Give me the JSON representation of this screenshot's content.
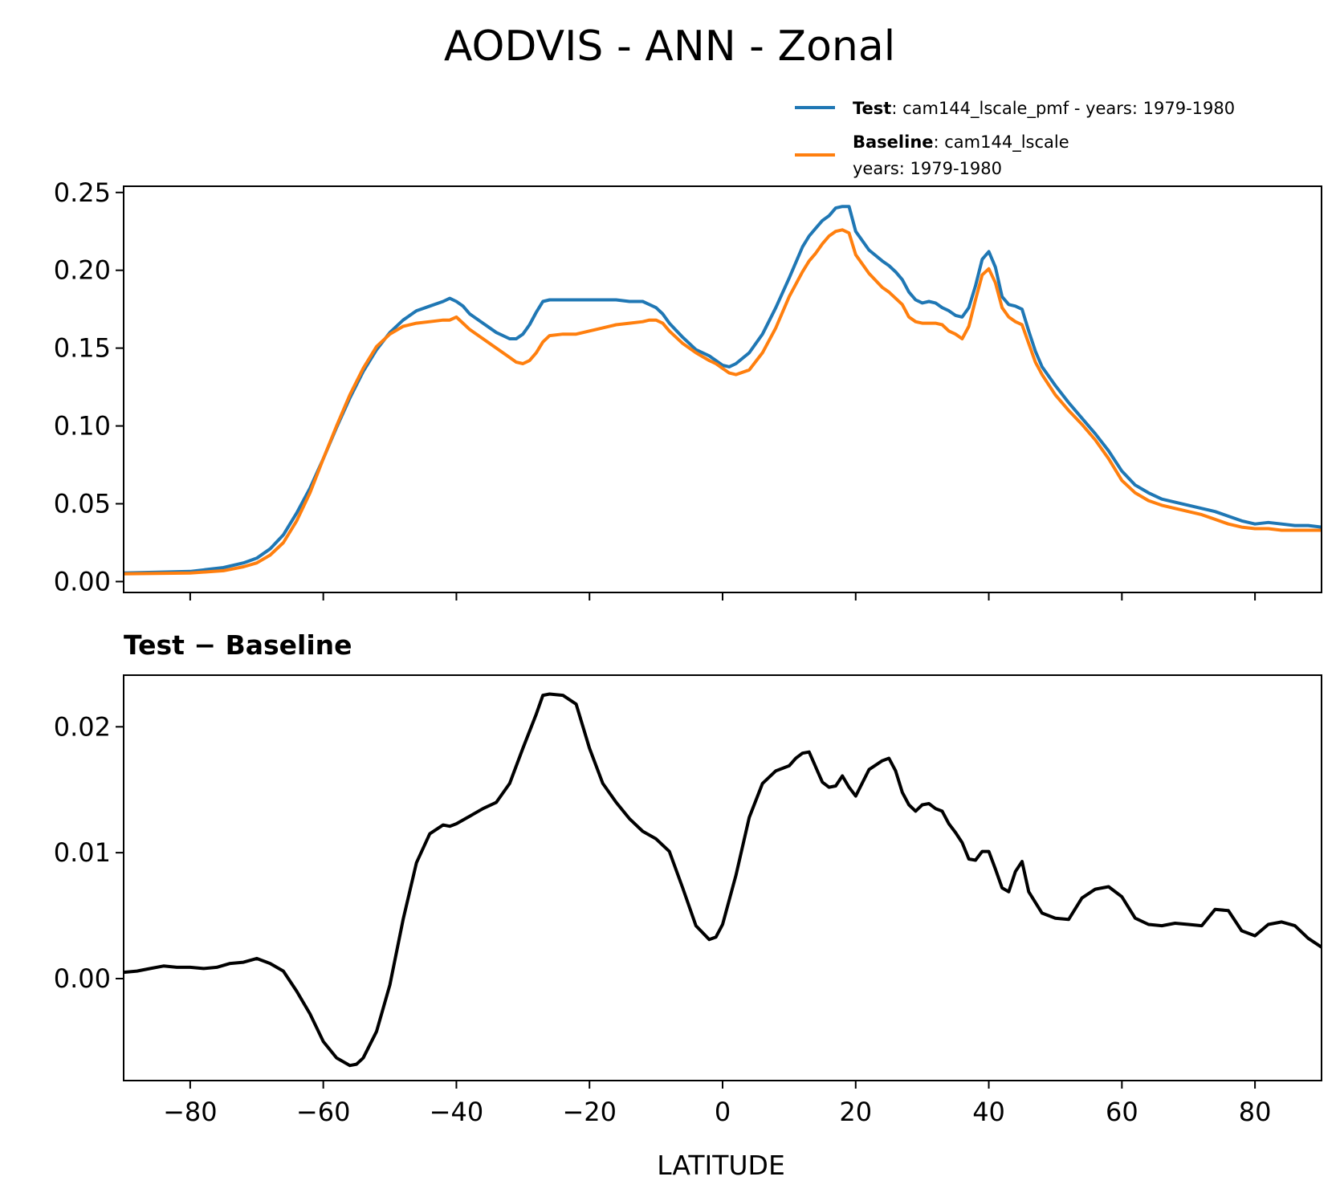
{
  "title": "AODVIS - ANN - Zonal",
  "legend": {
    "test_label": "Test",
    "test_text": ": cam144_lscale_pmf - years: 1979-1980",
    "baseline_label": "Baseline",
    "baseline_text_1": ": cam144_lscale",
    "baseline_text_2": "years: 1979-1980"
  },
  "diff_title": {
    "left": "Test",
    "op": " − ",
    "right": "Baseline"
  },
  "xlabel": "LATITUDE",
  "colors": {
    "test": "#1f77b4",
    "baseline": "#ff7f0e",
    "diff": "#000000"
  },
  "chart_data": [
    {
      "type": "line",
      "title": "",
      "xlabel": "",
      "ylabel": "",
      "xlim": [
        -90,
        90
      ],
      "ylim": [
        -0.007,
        0.254
      ],
      "xticks": [
        -80,
        -60,
        -40,
        -20,
        0,
        20,
        40,
        60,
        80
      ],
      "yticks": [
        0.0,
        0.05,
        0.1,
        0.15,
        0.2,
        0.25
      ],
      "ytick_labels": [
        "0.00",
        "0.05",
        "0.10",
        "0.15",
        "0.20",
        "0.25"
      ],
      "x": [
        -90,
        -80,
        -75,
        -72,
        -70,
        -68,
        -66,
        -64,
        -62,
        -60,
        -58,
        -56,
        -54,
        -52,
        -50,
        -48,
        -46,
        -44,
        -42,
        -41,
        -40,
        -39,
        -38,
        -36,
        -34,
        -32,
        -31,
        -30,
        -29,
        -28,
        -27,
        -26,
        -24,
        -22,
        -20,
        -18,
        -16,
        -14,
        -12,
        -11,
        -10,
        -9,
        -8,
        -6,
        -4,
        -2,
        -1,
        0,
        1,
        2,
        4,
        6,
        8,
        10,
        12,
        13,
        14,
        15,
        16,
        17,
        18,
        19,
        20,
        22,
        24,
        25,
        26,
        27,
        28,
        29,
        30,
        31,
        32,
        33,
        34,
        35,
        36,
        37,
        38,
        39,
        40,
        41,
        42,
        43,
        44,
        45,
        46,
        47,
        48,
        50,
        52,
        54,
        56,
        58,
        60,
        62,
        64,
        66,
        68,
        70,
        72,
        74,
        76,
        78,
        80,
        82,
        84,
        86,
        88,
        90
      ],
      "series": [
        {
          "name": "Test",
          "values": [
            0.0055,
            0.0065,
            0.009,
            0.012,
            0.015,
            0.021,
            0.03,
            0.044,
            0.06,
            0.079,
            0.099,
            0.118,
            0.135,
            0.149,
            0.16,
            0.168,
            0.174,
            0.177,
            0.18,
            0.182,
            0.18,
            0.177,
            0.172,
            0.166,
            0.16,
            0.156,
            0.156,
            0.159,
            0.165,
            0.173,
            0.18,
            0.181,
            0.181,
            0.181,
            0.181,
            0.181,
            0.181,
            0.18,
            0.18,
            0.178,
            0.176,
            0.172,
            0.166,
            0.157,
            0.149,
            0.145,
            0.142,
            0.139,
            0.138,
            0.14,
            0.147,
            0.159,
            0.176,
            0.195,
            0.215,
            0.222,
            0.227,
            0.232,
            0.235,
            0.24,
            0.241,
            0.241,
            0.225,
            0.213,
            0.206,
            0.203,
            0.199,
            0.194,
            0.186,
            0.181,
            0.179,
            0.18,
            0.179,
            0.176,
            0.174,
            0.171,
            0.17,
            0.176,
            0.19,
            0.207,
            0.212,
            0.202,
            0.183,
            0.178,
            0.177,
            0.175,
            0.161,
            0.148,
            0.138,
            0.126,
            0.115,
            0.105,
            0.095,
            0.084,
            0.071,
            0.062,
            0.057,
            0.053,
            0.051,
            0.049,
            0.047,
            0.045,
            0.042,
            0.039,
            0.037,
            0.038,
            0.037,
            0.036,
            0.036,
            0.035
          ]
        },
        {
          "name": "Baseline",
          "values": [
            0.005,
            0.0055,
            0.007,
            0.0095,
            0.012,
            0.017,
            0.025,
            0.039,
            0.057,
            0.079,
            0.1,
            0.12,
            0.137,
            0.151,
            0.159,
            0.164,
            0.166,
            0.167,
            0.168,
            0.168,
            0.17,
            0.166,
            0.162,
            0.156,
            0.15,
            0.144,
            0.141,
            0.14,
            0.142,
            0.147,
            0.154,
            0.158,
            0.159,
            0.159,
            0.161,
            0.163,
            0.165,
            0.166,
            0.167,
            0.168,
            0.168,
            0.166,
            0.161,
            0.153,
            0.147,
            0.142,
            0.14,
            0.137,
            0.134,
            0.133,
            0.136,
            0.147,
            0.163,
            0.183,
            0.199,
            0.206,
            0.211,
            0.217,
            0.222,
            0.225,
            0.226,
            0.224,
            0.21,
            0.198,
            0.189,
            0.186,
            0.182,
            0.178,
            0.17,
            0.167,
            0.166,
            0.166,
            0.166,
            0.165,
            0.161,
            0.159,
            0.156,
            0.164,
            0.181,
            0.197,
            0.201,
            0.192,
            0.176,
            0.17,
            0.167,
            0.165,
            0.153,
            0.141,
            0.133,
            0.12,
            0.11,
            0.101,
            0.091,
            0.079,
            0.065,
            0.057,
            0.052,
            0.049,
            0.047,
            0.045,
            0.043,
            0.04,
            0.037,
            0.035,
            0.034,
            0.034,
            0.033,
            0.033,
            0.033,
            0.033
          ]
        }
      ]
    },
    {
      "type": "line",
      "title": "Test − Baseline",
      "xlabel": "LATITUDE",
      "ylabel": "",
      "xlim": [
        -90,
        90
      ],
      "ylim": [
        -0.0081,
        0.0241
      ],
      "xticks": [
        -80,
        -60,
        -40,
        -20,
        0,
        20,
        40,
        60,
        80
      ],
      "xtick_labels": [
        "−80",
        "−60",
        "−40",
        "−20",
        "0",
        "20",
        "40",
        "60",
        "80"
      ],
      "yticks": [
        0.0,
        0.01,
        0.02
      ],
      "ytick_labels": [
        "0.00",
        "0.01",
        "0.02"
      ],
      "x": [
        -90,
        -88,
        -86,
        -84,
        -82,
        -80,
        -78,
        -76,
        -74,
        -72,
        -70,
        -68,
        -66,
        -64,
        -62,
        -60,
        -58,
        -56,
        -55,
        -54,
        -52,
        -50,
        -48,
        -46,
        -44,
        -42,
        -41,
        -40,
        -38,
        -36,
        -34,
        -32,
        -30,
        -28,
        -27,
        -26,
        -24,
        -22,
        -20,
        -18,
        -16,
        -14,
        -12,
        -10,
        -8,
        -6,
        -4,
        -2,
        -1,
        0,
        2,
        4,
        6,
        8,
        10,
        11,
        12,
        13,
        14,
        15,
        16,
        17,
        18,
        19,
        20,
        22,
        24,
        25,
        26,
        27,
        28,
        29,
        30,
        31,
        32,
        33,
        34,
        35,
        36,
        37,
        38,
        39,
        40,
        41,
        42,
        43,
        44,
        45,
        46,
        48,
        50,
        52,
        54,
        56,
        58,
        60,
        62,
        64,
        66,
        68,
        70,
        72,
        74,
        76,
        78,
        80,
        82,
        84,
        86,
        88,
        90
      ],
      "series": [
        {
          "name": "",
          "values": [
            0.0005,
            0.0006,
            0.0008,
            0.001,
            0.0009,
            0.0009,
            0.0008,
            0.0009,
            0.0012,
            0.0013,
            0.0016,
            0.0012,
            0.0006,
            -0.001,
            -0.0028,
            -0.005,
            -0.0063,
            -0.0069,
            -0.0068,
            -0.0063,
            -0.0042,
            -0.0005,
            0.0047,
            0.0092,
            0.0115,
            0.0122,
            0.0121,
            0.0123,
            0.0129,
            0.0135,
            0.014,
            0.0155,
            0.0183,
            0.021,
            0.0225,
            0.0226,
            0.0225,
            0.0218,
            0.0183,
            0.0155,
            0.014,
            0.0127,
            0.0117,
            0.0111,
            0.0101,
            0.0072,
            0.0042,
            0.0031,
            0.0033,
            0.0043,
            0.0082,
            0.0128,
            0.0155,
            0.0165,
            0.0169,
            0.0175,
            0.0179,
            0.018,
            0.0168,
            0.0156,
            0.0152,
            0.0153,
            0.0161,
            0.0152,
            0.0145,
            0.0166,
            0.0173,
            0.0175,
            0.0165,
            0.0148,
            0.0138,
            0.0133,
            0.0138,
            0.0139,
            0.0135,
            0.0133,
            0.0123,
            0.0116,
            0.0108,
            0.0095,
            0.0094,
            0.0101,
            0.0101,
            0.0087,
            0.0072,
            0.0069,
            0.0085,
            0.0093,
            0.0069,
            0.0052,
            0.0048,
            0.0047,
            0.0064,
            0.0071,
            0.0073,
            0.0065,
            0.0048,
            0.0043,
            0.0042,
            0.0044,
            0.0043,
            0.0042,
            0.0055,
            0.0054,
            0.0038,
            0.0034,
            0.0043,
            0.0045,
            0.0042,
            0.0032,
            0.0025
          ]
        }
      ]
    }
  ]
}
